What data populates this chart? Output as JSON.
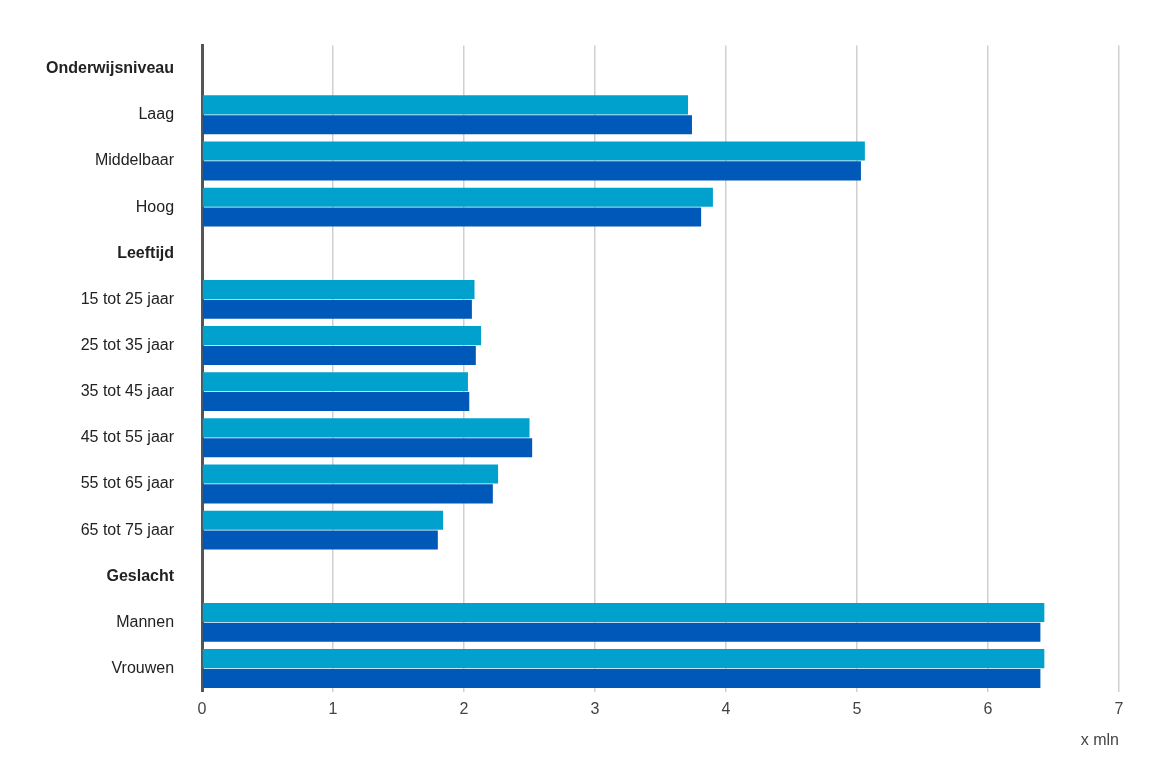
{
  "chart_data": {
    "type": "bar",
    "orientation": "horizontal",
    "xlabel": "x mln",
    "categories": [
      "Onderwijsniveau",
      "Laag",
      "Middelbaar",
      "Hoog",
      "Leeftijd",
      "15 tot 25 jaar",
      "25 tot 35 jaar",
      "35 tot 45 jaar",
      "45 tot 55 jaar",
      "55 tot 65 jaar",
      "65 tot 75 jaar",
      "Geslacht",
      "Mannen",
      "Vrouwen"
    ],
    "series": [
      {
        "color": "#00a1cd",
        "values": [
          null,
          3.71,
          5.06,
          3.9,
          null,
          2.08,
          2.13,
          2.03,
          2.5,
          2.26,
          1.84,
          null,
          6.43,
          6.43
        ]
      },
      {
        "color": "#0058b8",
        "values": [
          null,
          3.74,
          5.03,
          3.81,
          null,
          2.06,
          2.09,
          2.04,
          2.52,
          2.22,
          1.8,
          null,
          6.4,
          6.4
        ]
      }
    ],
    "xlim": [
      0,
      7
    ],
    "xticks": [
      0,
      1,
      2,
      3,
      4,
      5,
      6,
      7
    ],
    "grid": "x",
    "legend": false
  }
}
